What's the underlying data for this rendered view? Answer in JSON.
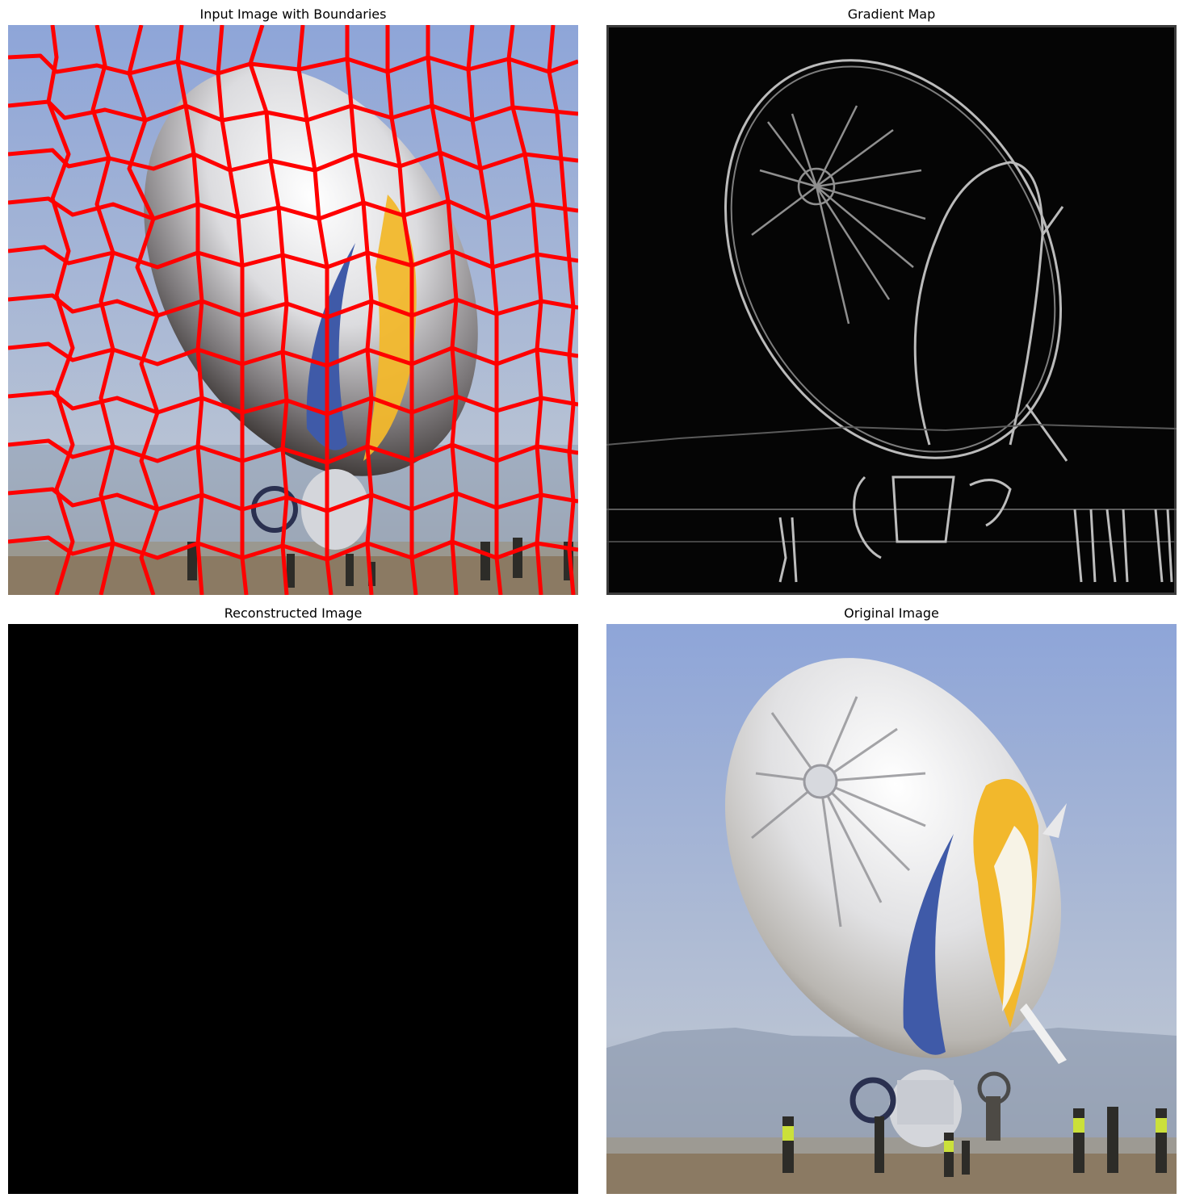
{
  "figure": {
    "panels": [
      {
        "title": "Input Image with Boundaries"
      },
      {
        "title": "Gradient Map"
      },
      {
        "title": "Reconstructed Image"
      },
      {
        "title": "Original Image"
      }
    ]
  },
  "colors": {
    "boundary": "#ff0000",
    "sky_top": "#8fa6d6",
    "sky_bottom": "#b9c4d4",
    "ground": "#8b7a63",
    "envelope": "#e9e9ea",
    "stripe_blue": "#3f5aa8",
    "stripe_yellow": "#f2b82c",
    "gradient_bg": "#050505",
    "reconstructed_bg": "#000000"
  }
}
